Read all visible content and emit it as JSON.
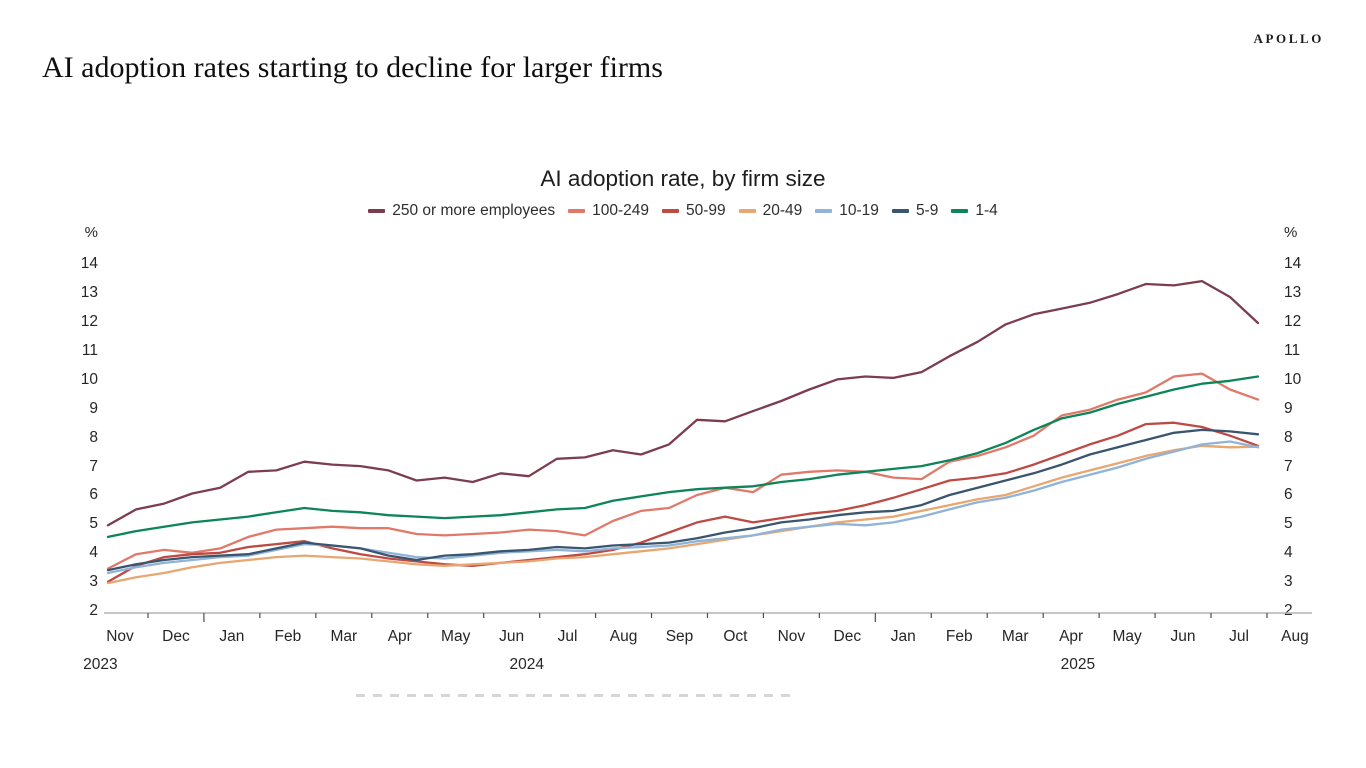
{
  "brand": "APOLLO",
  "headline": "AI adoption rates starting to decline for larger firms",
  "chart_data": {
    "type": "line",
    "title": "AI adoption rate, by firm size",
    "y_unit": "%",
    "ylim": [
      2,
      14
    ],
    "y_ticks": [
      14,
      13,
      12,
      11,
      10,
      9,
      8,
      7,
      6,
      5,
      4,
      3,
      2
    ],
    "grid": false,
    "legend_position": "top",
    "points_per_month": 2,
    "x_months": [
      "Nov",
      "Dec",
      "Jan",
      "Feb",
      "Mar",
      "Apr",
      "May",
      "Jun",
      "Jul",
      "Aug",
      "Sep",
      "Oct",
      "Nov",
      "Dec",
      "Jan",
      "Feb",
      "Mar",
      "Apr",
      "May",
      "Jun",
      "Jul",
      "Aug"
    ],
    "x_years": [
      {
        "label": "2023",
        "month_index": -0.35
      },
      {
        "label": "2024",
        "month_index": 7.27
      },
      {
        "label": "2025",
        "month_index": 17.12
      }
    ],
    "series": [
      {
        "name": "250 or more employees",
        "color": "#7c3d4f",
        "values": [
          5.0,
          5.55,
          5.75,
          6.1,
          6.3,
          6.85,
          6.9,
          7.2,
          7.1,
          7.05,
          6.9,
          6.55,
          6.65,
          6.5,
          6.8,
          6.7,
          7.3,
          7.35,
          7.6,
          7.45,
          7.8,
          8.65,
          8.6,
          8.95,
          9.3,
          9.7,
          10.05,
          10.15,
          10.1,
          10.3,
          10.85,
          11.35,
          11.95,
          12.3,
          12.5,
          12.7,
          13.0,
          13.35,
          13.3,
          13.45,
          12.9,
          12.0
        ]
      },
      {
        "name": "100-249",
        "color": "#e0796a",
        "values": [
          3.5,
          4.0,
          4.15,
          4.05,
          4.2,
          4.6,
          4.85,
          4.9,
          4.95,
          4.9,
          4.9,
          4.7,
          4.65,
          4.7,
          4.75,
          4.85,
          4.8,
          4.65,
          5.15,
          5.5,
          5.6,
          6.05,
          6.3,
          6.15,
          6.75,
          6.85,
          6.9,
          6.85,
          6.65,
          6.6,
          7.2,
          7.4,
          7.7,
          8.1,
          8.8,
          9.0,
          9.35,
          9.6,
          10.15,
          10.25,
          9.7,
          9.35
        ]
      },
      {
        "name": "50-99",
        "color": "#bd4a43",
        "values": [
          3.05,
          3.6,
          3.9,
          4.0,
          4.05,
          4.25,
          4.35,
          4.45,
          4.2,
          4.0,
          3.85,
          3.75,
          3.65,
          3.6,
          3.7,
          3.8,
          3.9,
          4.0,
          4.15,
          4.4,
          4.75,
          5.1,
          5.3,
          5.1,
          5.25,
          5.4,
          5.5,
          5.7,
          5.95,
          6.25,
          6.55,
          6.65,
          6.8,
          7.1,
          7.45,
          7.8,
          8.1,
          8.5,
          8.55,
          8.4,
          8.1,
          7.75
        ]
      },
      {
        "name": "20-49",
        "color": "#e8a671",
        "values": [
          3.0,
          3.2,
          3.35,
          3.55,
          3.7,
          3.8,
          3.9,
          3.95,
          3.9,
          3.85,
          3.75,
          3.65,
          3.6,
          3.65,
          3.7,
          3.75,
          3.85,
          3.9,
          4.0,
          4.1,
          4.2,
          4.35,
          4.5,
          4.65,
          4.8,
          4.95,
          5.1,
          5.2,
          5.3,
          5.5,
          5.7,
          5.9,
          6.05,
          6.35,
          6.65,
          6.9,
          7.15,
          7.4,
          7.6,
          7.75,
          7.7,
          7.72
        ]
      },
      {
        "name": "10-19",
        "color": "#8fb3d9",
        "values": [
          3.35,
          3.55,
          3.7,
          3.8,
          3.9,
          3.95,
          4.15,
          4.35,
          4.3,
          4.2,
          4.05,
          3.9,
          3.85,
          3.95,
          4.05,
          4.1,
          4.15,
          4.1,
          4.2,
          4.25,
          4.3,
          4.45,
          4.55,
          4.65,
          4.85,
          4.95,
          5.05,
          5.0,
          5.1,
          5.3,
          5.55,
          5.8,
          5.95,
          6.2,
          6.5,
          6.75,
          7.0,
          7.3,
          7.55,
          7.8,
          7.9,
          7.7
        ]
      },
      {
        "name": "5-9",
        "color": "#3a556e",
        "values": [
          3.45,
          3.65,
          3.8,
          3.9,
          3.95,
          4.0,
          4.2,
          4.4,
          4.3,
          4.2,
          3.95,
          3.8,
          3.95,
          4.0,
          4.1,
          4.15,
          4.25,
          4.2,
          4.3,
          4.35,
          4.4,
          4.55,
          4.75,
          4.9,
          5.1,
          5.2,
          5.35,
          5.45,
          5.5,
          5.7,
          6.05,
          6.3,
          6.55,
          6.8,
          7.1,
          7.45,
          7.7,
          7.95,
          8.2,
          8.3,
          8.25,
          8.15
        ]
      },
      {
        "name": "1-4",
        "color": "#0d8558",
        "values": [
          4.6,
          4.8,
          4.95,
          5.1,
          5.2,
          5.3,
          5.45,
          5.6,
          5.5,
          5.45,
          5.35,
          5.3,
          5.25,
          5.3,
          5.35,
          5.45,
          5.55,
          5.6,
          5.85,
          6.0,
          6.15,
          6.25,
          6.3,
          6.35,
          6.5,
          6.6,
          6.75,
          6.85,
          6.95,
          7.05,
          7.25,
          7.5,
          7.85,
          8.3,
          8.7,
          8.9,
          9.2,
          9.45,
          9.7,
          9.9,
          10.0,
          10.15
        ]
      }
    ]
  }
}
